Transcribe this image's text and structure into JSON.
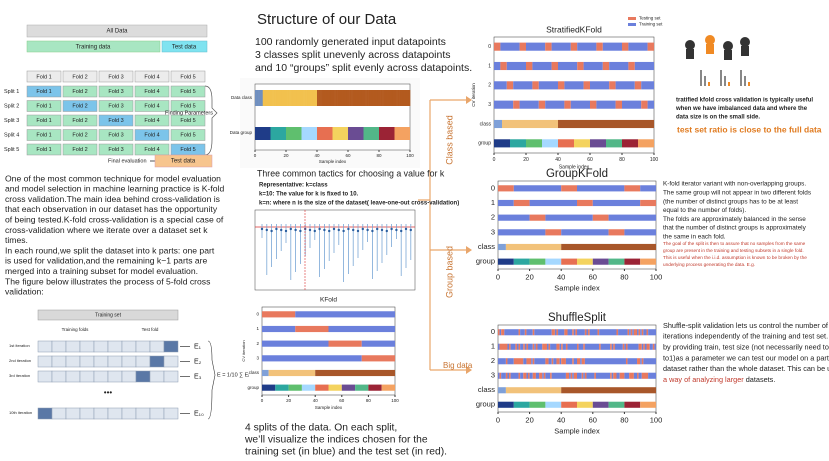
{
  "title": "Structure of our Data",
  "intro": [
    "100 randomly generated input datapoints",
    "3 classes split unevenly across datapoints",
    "and 10 “groups” split evenly across datapoints."
  ],
  "kfold_diagram": {
    "all_data": "All Data",
    "training_data": "Training data",
    "test_data": "Test data",
    "folds": [
      "Fold 1",
      "Fold 2",
      "Fold 3",
      "Fold 4",
      "Fold 5"
    ],
    "splits": [
      "Split 1",
      "Split 2",
      "Split 3",
      "Split 4",
      "Split 5"
    ],
    "finding_parameters": "Finding Parameters",
    "final_evaluation": "Final evaluation",
    "final_test_data": "Test data"
  },
  "left_text": [
    "One of the most common technique for model evaluation",
    "and model selection in machine learning practice is K-fold",
    " cross validation.The main idea behind cross-validation is",
    " that each observation in our dataset has the opportunity",
    "of being tested.K-fold cross-validation is a special case of",
    "cross-validation where we iterate over a dataset set k",
    "times.",
    " In each round,we split the dataset into  k  parts: one part",
    "is used for validation,and the remaining  k−1  parts are",
    "merged into a training subset for model evaluation.",
    " The figure below illustrates the process of 5-fold cross",
    "validation:"
  ],
  "iteration_diagram": {
    "training_set": "Training set",
    "training_folds": "Training folds",
    "test_fold": "Test fold",
    "iterations": [
      "1st iteration",
      "2nd iteration",
      "3rd iteration",
      "10th iteration"
    ],
    "errors": [
      "E₁",
      "E₂",
      "E₃",
      "E₁₀"
    ],
    "ellipsis": "•••",
    "formula": "E = 1/10 ∑ Eᵢ"
  },
  "data_plot": {
    "yticklabels": [
      "Data class",
      "Data group"
    ],
    "xticks": [
      0,
      20,
      40,
      60,
      80,
      100
    ],
    "xlabel": "Sample index"
  },
  "tactics": {
    "heading": "Three common tactics for choosing a value for k",
    "items": [
      "Representative: k=class",
      "k=10: The value for k is fixed to 10.",
      "k=n: where n is the size of the dataset( leave-one-out cross-validation)"
    ]
  },
  "kfold_plot": {
    "title": "KFold",
    "ylabel": "CV iteration",
    "xlabel": "Sample index",
    "yticklabels": [
      "0",
      "1",
      "2",
      "3",
      "class",
      "group"
    ],
    "xticks": [
      0,
      20,
      40,
      60,
      80,
      100
    ]
  },
  "caption": [
    "4 splits of the data. On each split,",
    "we’ll visualize the indices chosen for the",
    "training set (in blue) and the test set (in red)."
  ],
  "arrows": {
    "class_based": "Class based",
    "group_based": "Group based",
    "big_data": "Big data"
  },
  "stratified_plot": {
    "title": "StratifiedKFold",
    "ylabel": "CV iteration",
    "xlabel": "Sample index",
    "yticklabels": [
      "0",
      "1",
      "2",
      "3",
      "class",
      "group"
    ],
    "xticks": [
      0,
      20,
      40,
      60,
      80,
      100
    ],
    "legend": [
      "Testing set",
      "Training set"
    ]
  },
  "stratified_text": [
    "tratified kfold cross validation is typically useful",
    "when we have imbalanced data and where the",
    "data size is on the small side."
  ],
  "stratified_note": "test set ratio is close to the full data",
  "group_plot": {
    "title": "GroupKFold",
    "xlabel": "Sample index",
    "yticklabels": [
      "0",
      "1",
      "2",
      "3",
      "class",
      "group"
    ],
    "xticks": [
      0,
      20,
      40,
      60,
      80,
      100
    ]
  },
  "group_text": [
    "K-fold iterator variant with non-overlapping groups.",
    "The same group will not appear in two different folds",
    "(the number of distinct groups has to be at least",
    "equal to the number of folds).",
    "The folds are approximately balanced in the sense",
    "that the number of distinct groups is approximately",
    "the same in each fold."
  ],
  "group_note": [
    "The goal of the split is then to assure that no samples from the same",
    "group are present in the training and testing subsets in a single fold.",
    "This is useful when the i.i.d. assumption is known to be broken by the",
    "underlying process generating the data. E.g."
  ],
  "shuffle_plot": {
    "title": "ShuffleSplit",
    "xlabel": "Sample index",
    "yticklabels": [
      "0",
      "1",
      "2",
      "3",
      "class",
      "group"
    ],
    "xticks": [
      0,
      20,
      40,
      60,
      80,
      100
    ]
  },
  "shuffle_text": [
    "Shuffle-split validation lets us control the number of",
    "iterations independently of the training and test set. Also",
    "by providing train, test size (not necessarily need to sum",
    "to1)as a parameter we can test our model on a part of the",
    "dataset rather than the whole dataset. This can be used as"
  ],
  "shuffle_last": [
    "a way of analyzing larger",
    " datasets."
  ]
}
